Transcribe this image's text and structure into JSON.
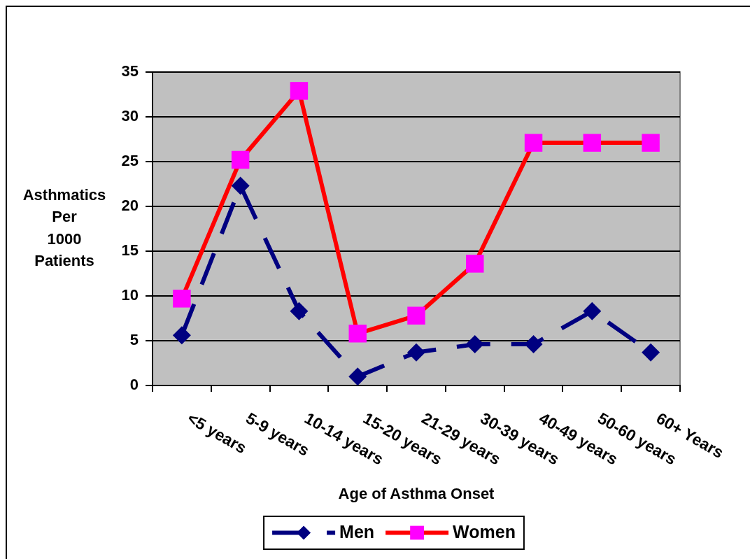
{
  "chart_data": {
    "type": "line",
    "xlabel": "Age of Asthma Onset",
    "ylabel": "Asthmatics Per 1000 Patients",
    "categories": [
      "<5 years",
      "5-9 years",
      "10-14 years",
      "15-20 years",
      "21-29 years",
      "30-39 years",
      "40-49 years",
      "50-60 years",
      "60+ Years"
    ],
    "series": [
      {
        "name": "Men",
        "color": "#000080",
        "values": [
          5.6,
          22.3,
          8.3,
          1.0,
          3.7,
          4.6,
          4.6,
          8.3,
          3.7
        ],
        "marker": "diamond",
        "line_style": "dashed"
      },
      {
        "name": "Women",
        "color": "#ff0000",
        "colors": [
          "#ff00ff",
          "#ff00ff",
          "#ff00ff",
          "#ff00ff",
          "#ff00ff",
          "#ff00ff",
          "#ff00ff",
          "#ff00ff",
          "#ff00ff"
        ],
        "values": [
          9.7,
          25.2,
          32.9,
          5.8,
          7.8,
          13.6,
          27.1,
          27.1,
          27.1
        ],
        "marker": "square",
        "line_style": "solid"
      }
    ],
    "ylim": [
      0,
      35
    ],
    "yticks": [
      0,
      5,
      10,
      15,
      20,
      25,
      30,
      35
    ],
    "grid": "y",
    "legend": "bottom"
  }
}
